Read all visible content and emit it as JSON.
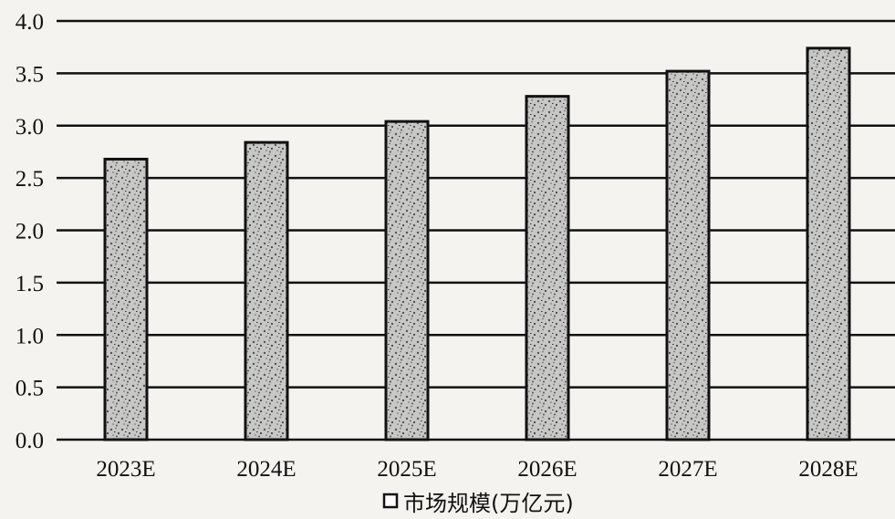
{
  "chart_data": {
    "type": "bar",
    "categories": [
      "2023E",
      "2024E",
      "2025E",
      "2026E",
      "2027E",
      "2028E"
    ],
    "series": [
      {
        "name": "市场规模(万亿元)",
        "values": [
          2.68,
          2.84,
          3.04,
          3.28,
          3.52,
          3.74
        ]
      }
    ],
    "ylim": [
      0,
      4.0
    ],
    "yticks": [
      "0.0",
      "0.5",
      "1.0",
      "1.5",
      "2.0",
      "2.5",
      "3.0",
      "3.5",
      "4.0"
    ],
    "grid": true,
    "legend": {
      "position": "bottom",
      "label": "市场规模(万亿元)"
    },
    "colors": {
      "bar_fill": "#b9b9b9",
      "bar_stroke": "#111111",
      "grid": "#111111",
      "background": "#f4f3ef"
    }
  }
}
